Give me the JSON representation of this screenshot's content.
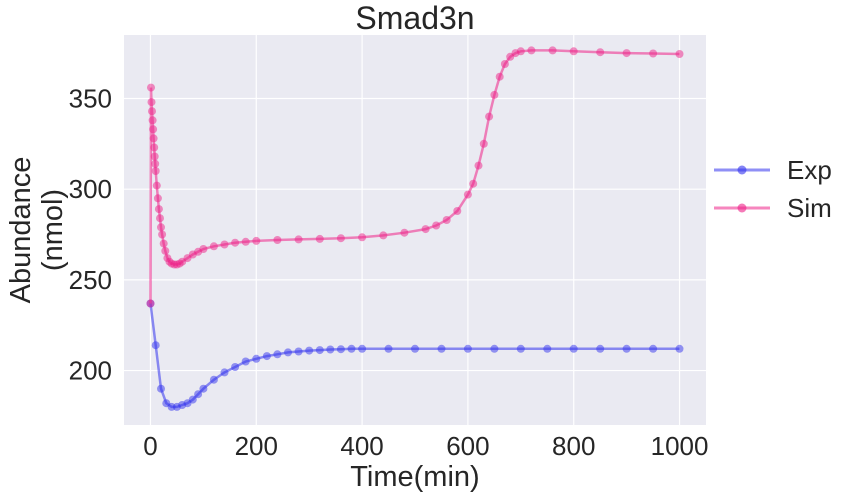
{
  "chart_data": {
    "type": "line",
    "title": "Smad3n",
    "xlabel": "Time(min)",
    "ylabel_lines": [
      "Abundance",
      "(nmol)"
    ],
    "xlim": [
      -50,
      1050
    ],
    "ylim": [
      170,
      385
    ],
    "xticks": [
      0,
      200,
      400,
      600,
      800,
      1000
    ],
    "yticks": [
      200,
      250,
      300,
      350
    ],
    "grid": true,
    "legend_position": "right",
    "series": [
      {
        "name": "Exp",
        "color": "#3333ee",
        "points": [
          [
            0,
            237
          ],
          [
            10,
            214
          ],
          [
            20,
            190
          ],
          [
            30,
            182
          ],
          [
            40,
            180
          ],
          [
            50,
            180
          ],
          [
            60,
            181
          ],
          [
            70,
            182
          ],
          [
            80,
            184
          ],
          [
            90,
            187
          ],
          [
            100,
            190
          ],
          [
            120,
            195
          ],
          [
            140,
            199
          ],
          [
            160,
            202
          ],
          [
            180,
            205
          ],
          [
            200,
            206.5
          ],
          [
            220,
            208
          ],
          [
            240,
            209
          ],
          [
            260,
            210
          ],
          [
            280,
            210.5
          ],
          [
            300,
            211
          ],
          [
            320,
            211.3
          ],
          [
            340,
            211.6
          ],
          [
            360,
            211.8
          ],
          [
            380,
            212
          ],
          [
            400,
            212
          ],
          [
            450,
            212
          ],
          [
            500,
            212
          ],
          [
            550,
            212
          ],
          [
            600,
            212
          ],
          [
            650,
            212
          ],
          [
            700,
            212
          ],
          [
            750,
            212
          ],
          [
            800,
            212
          ],
          [
            850,
            212
          ],
          [
            900,
            212
          ],
          [
            950,
            212
          ],
          [
            1000,
            212
          ]
        ]
      },
      {
        "name": "Sim",
        "color": "#ee2288",
        "points": [
          [
            0,
            237
          ],
          [
            1,
            356
          ],
          [
            2,
            348
          ],
          [
            3,
            343
          ],
          [
            4,
            338
          ],
          [
            5,
            333
          ],
          [
            6,
            328
          ],
          [
            7,
            323
          ],
          [
            8,
            318
          ],
          [
            9,
            314
          ],
          [
            10,
            310
          ],
          [
            12,
            302
          ],
          [
            14,
            295
          ],
          [
            16,
            289
          ],
          [
            18,
            284
          ],
          [
            20,
            279
          ],
          [
            22,
            275
          ],
          [
            25,
            270
          ],
          [
            28,
            266
          ],
          [
            32,
            262
          ],
          [
            36,
            260
          ],
          [
            40,
            259
          ],
          [
            45,
            258.5
          ],
          [
            50,
            258.5
          ],
          [
            55,
            259
          ],
          [
            60,
            260
          ],
          [
            70,
            262
          ],
          [
            80,
            264
          ],
          [
            90,
            265.5
          ],
          [
            100,
            267
          ],
          [
            120,
            268.5
          ],
          [
            140,
            269.5
          ],
          [
            160,
            270.5
          ],
          [
            180,
            271
          ],
          [
            200,
            271.5
          ],
          [
            240,
            272
          ],
          [
            280,
            272.3
          ],
          [
            320,
            272.6
          ],
          [
            360,
            273
          ],
          [
            400,
            273.5
          ],
          [
            440,
            274.5
          ],
          [
            480,
            276
          ],
          [
            520,
            278
          ],
          [
            540,
            280
          ],
          [
            560,
            283
          ],
          [
            580,
            288
          ],
          [
            600,
            297
          ],
          [
            610,
            303
          ],
          [
            620,
            313
          ],
          [
            630,
            325
          ],
          [
            640,
            340
          ],
          [
            650,
            352
          ],
          [
            660,
            362
          ],
          [
            670,
            369
          ],
          [
            680,
            373
          ],
          [
            690,
            375
          ],
          [
            700,
            376
          ],
          [
            720,
            376.5
          ],
          [
            760,
            376.5
          ],
          [
            800,
            376
          ],
          [
            850,
            375.5
          ],
          [
            900,
            375
          ],
          [
            950,
            374.8
          ],
          [
            1000,
            374.5
          ]
        ]
      }
    ]
  }
}
